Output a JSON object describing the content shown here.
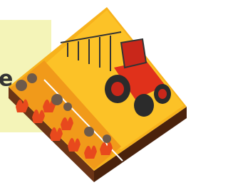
{
  "panel": {
    "text": "e"
  }
}
